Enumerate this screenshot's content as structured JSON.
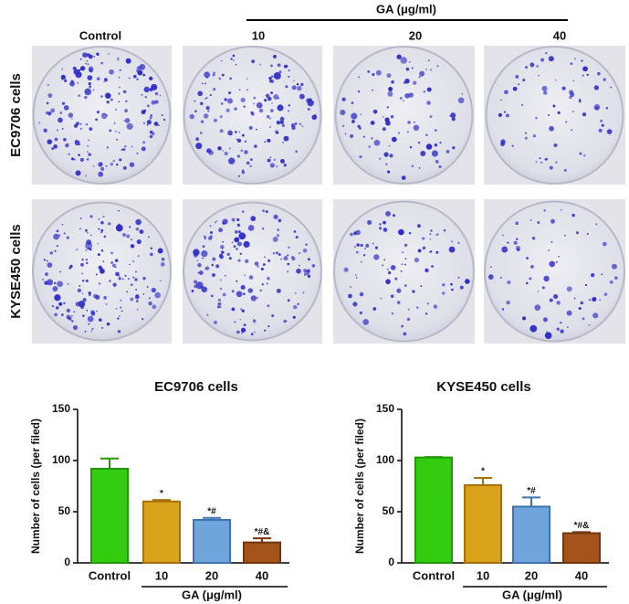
{
  "panel": {
    "group_label": "GA (μg/ml)",
    "columns": [
      "Control",
      "10",
      "20",
      "40"
    ],
    "rows": [
      "EC9706 cells",
      "KYSE450 cells"
    ]
  },
  "chart_data": [
    {
      "type": "bar",
      "title": "EC9706 cells",
      "ylabel": "Number of cells (per filed)",
      "xlabel": "GA (μg/ml)",
      "categories": [
        "Control",
        "10",
        "20",
        "40"
      ],
      "values": [
        92,
        60,
        42,
        20
      ],
      "errors": [
        10,
        1.5,
        2,
        4
      ],
      "significance": [
        null,
        "*",
        "*#",
        "*#&"
      ],
      "colors": [
        "#33cc11",
        "#d9a21b",
        "#6fa4dc",
        "#a4531a"
      ],
      "edge_colors": [
        "#229900",
        "#a8700c",
        "#3d74b0",
        "#74350c"
      ],
      "ylim": [
        0,
        150
      ],
      "yticks": [
        0,
        50,
        100,
        150
      ]
    },
    {
      "type": "bar",
      "title": "KYSE450 cells",
      "ylabel": "Number of cells (per filed)",
      "xlabel": "GA (μg/ml)",
      "categories": [
        "Control",
        "10",
        "20",
        "40"
      ],
      "values": [
        103,
        76,
        55,
        29
      ],
      "errors": [
        0.5,
        7,
        9,
        1
      ],
      "significance": [
        null,
        "*",
        "*#",
        "*#&"
      ],
      "colors": [
        "#33cc11",
        "#d9a21b",
        "#6fa4dc",
        "#a4531a"
      ],
      "edge_colors": [
        "#229900",
        "#a8700c",
        "#3d74b0",
        "#74350c"
      ],
      "ylim": [
        0,
        150
      ],
      "yticks": [
        0,
        50,
        100,
        150
      ]
    }
  ]
}
